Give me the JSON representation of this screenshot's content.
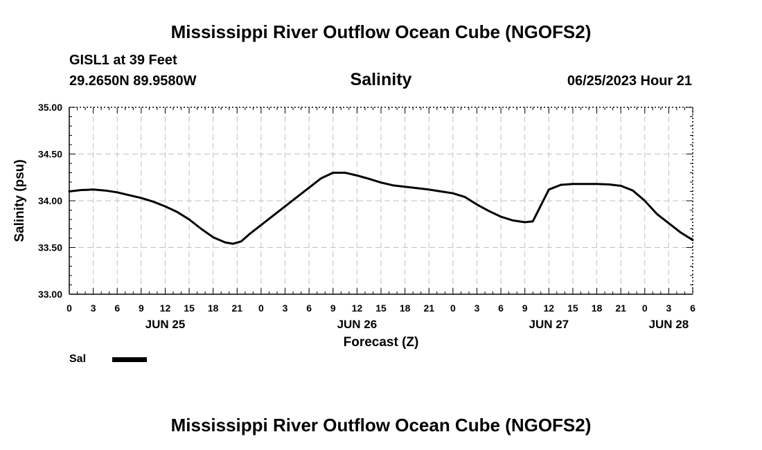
{
  "header": {
    "title": "Mississippi River Outflow Ocean Cube (NGOFS2)",
    "station": "GISL1 at 39 Feet",
    "coords": "29.2650N  89.9580W",
    "chart_title": "Salinity",
    "datetime": "06/25/2023 Hour 21"
  },
  "footer": {
    "title": "Mississippi River Outflow Ocean Cube (NGOFS2)"
  },
  "legend": {
    "label": "Sal"
  },
  "chart_data": {
    "type": "line",
    "title": "Salinity",
    "xlabel": "Forecast (Z)",
    "ylabel": "Salinity (psu)",
    "xlim": [
      0,
      78
    ],
    "ylim": [
      33.0,
      35.0
    ],
    "yticks": [
      33.0,
      33.5,
      34.0,
      34.5,
      35.0
    ],
    "ytick_labels": [
      "33.00",
      "33.50",
      "34.00",
      "34.50",
      "35.00"
    ],
    "xtick_hours": [
      0,
      3,
      6,
      9,
      12,
      15,
      18,
      21,
      24,
      27,
      30,
      33,
      36,
      39,
      42,
      45,
      48,
      51,
      54,
      57,
      60,
      63,
      66,
      69,
      72,
      75,
      78
    ],
    "xtick_labels": [
      "0",
      "3",
      "6",
      "9",
      "12",
      "15",
      "18",
      "21",
      "0",
      "3",
      "6",
      "9",
      "12",
      "15",
      "18",
      "21",
      "0",
      "3",
      "6",
      "9",
      "12",
      "15",
      "18",
      "21",
      "0",
      "3",
      "6"
    ],
    "day_labels": [
      {
        "label": "JUN 25",
        "hour": 12
      },
      {
        "label": "JUN 26",
        "hour": 36
      },
      {
        "label": "JUN 27",
        "hour": 60
      },
      {
        "label": "JUN 28",
        "hour": 75
      }
    ],
    "grid": true,
    "series": [
      {
        "name": "Sal",
        "color": "#000000",
        "x": [
          0,
          1.5,
          3,
          4.5,
          6,
          7.5,
          9,
          10.5,
          12,
          13.5,
          15,
          16.5,
          18,
          19.5,
          20.5,
          21.5,
          22.5,
          24,
          25.5,
          27,
          28.5,
          30,
          31.5,
          33,
          34.5,
          36,
          37.5,
          39,
          40.5,
          42,
          43.5,
          45,
          46.5,
          48,
          49.5,
          51,
          52.5,
          54,
          55.5,
          57,
          58,
          59,
          60,
          61.5,
          63,
          64.5,
          66,
          67.5,
          69,
          70.5,
          72,
          73.5,
          75,
          76.5,
          78
        ],
        "values": [
          34.1,
          34.115,
          34.12,
          34.11,
          34.09,
          34.06,
          34.03,
          33.99,
          33.94,
          33.88,
          33.8,
          33.7,
          33.61,
          33.555,
          33.54,
          33.565,
          33.64,
          33.74,
          33.84,
          33.94,
          34.04,
          34.14,
          34.24,
          34.3,
          34.3,
          34.27,
          34.235,
          34.195,
          34.165,
          34.15,
          34.135,
          34.12,
          34.1,
          34.08,
          34.04,
          33.96,
          33.89,
          33.83,
          33.79,
          33.77,
          33.78,
          33.95,
          34.12,
          34.17,
          34.18,
          34.18,
          34.18,
          34.175,
          34.16,
          34.11,
          34.0,
          33.86,
          33.76,
          33.66,
          33.58
        ]
      }
    ]
  }
}
